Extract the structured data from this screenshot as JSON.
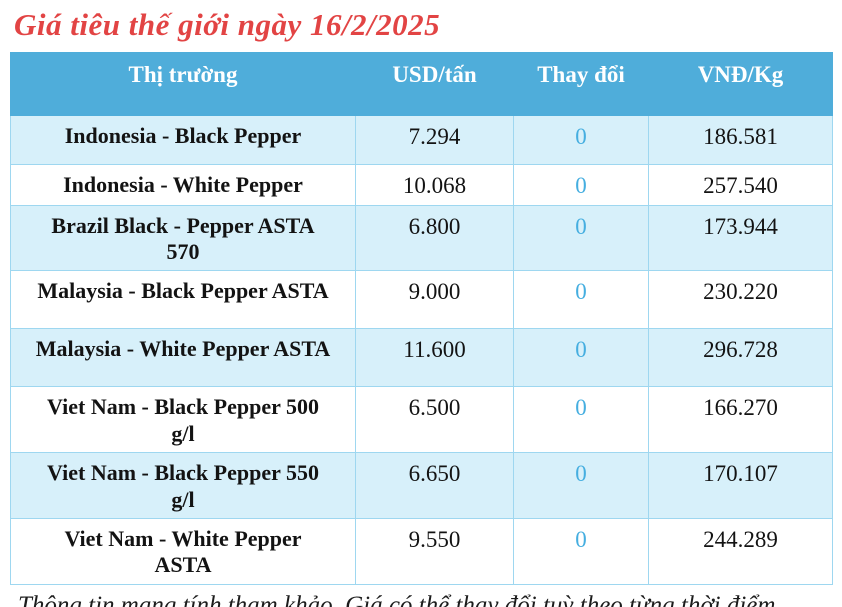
{
  "title": "Giá tiêu thế giới ngày 16/2/2025",
  "footer": "Thông tin mang tính tham khảo. Giá có thể thay đổi tuỳ theo từng thời điểm",
  "table": {
    "columns": [
      "Thị trường",
      "USD/tấn",
      "Thay đổi",
      "VNĐ/Kg"
    ],
    "rows": [
      {
        "market": "Indonesia - Black Pepper",
        "usd": "7.294",
        "change": "0",
        "vnd": "186.581"
      },
      {
        "market": "Indonesia - White Pepper",
        "usd": "10.068",
        "change": "0",
        "vnd": "257.540"
      },
      {
        "market": "Brazil Black - Pepper ASTA 570",
        "usd": "6.800",
        "change": "0",
        "vnd": "173.944"
      },
      {
        "market": "Malaysia - Black Pepper ASTA",
        "usd": "9.000",
        "change": "0",
        "vnd": "230.220"
      },
      {
        "market": "Malaysia - White Pepper ASTA",
        "usd": "11.600",
        "change": "0",
        "vnd": "296.728"
      },
      {
        "market": "Viet Nam - Black Pepper 500 g/l",
        "usd": "6.500",
        "change": "0",
        "vnd": "166.270"
      },
      {
        "market": "Viet Nam - Black Pepper 550 g/l",
        "usd": "6.650",
        "change": "0",
        "vnd": "170.107"
      },
      {
        "market": "Viet Nam - White Pepper ASTA",
        "usd": "9.550",
        "change": "0",
        "vnd": "244.289"
      }
    ]
  },
  "colors": {
    "title_red": "#e24444",
    "header_blue": "#4fadda",
    "row_stripe_blue": "#d7f0fa",
    "grid_border_blue": "#9ed7f0",
    "change_value_blue": "#45aee0"
  },
  "chart_data": {
    "type": "table",
    "title": "Giá tiêu thế giới ngày 16/2/2025",
    "columns": [
      "Thị trường",
      "USD/tấn",
      "Thay đổi",
      "VNĐ/Kg"
    ],
    "rows": [
      [
        "Indonesia - Black Pepper",
        "7.294",
        "0",
        "186.581"
      ],
      [
        "Indonesia - White Pepper",
        "10.068",
        "0",
        "257.540"
      ],
      [
        "Brazil Black - Pepper ASTA 570",
        "6.800",
        "0",
        "173.944"
      ],
      [
        "Malaysia - Black Pepper ASTA",
        "9.000",
        "0",
        "230.220"
      ],
      [
        "Malaysia - White Pepper ASTA",
        "11.600",
        "0",
        "296.728"
      ],
      [
        "Viet Nam - Black Pepper 500 g/l",
        "6.500",
        "0",
        "166.270"
      ],
      [
        "Viet Nam - Black Pepper 550 g/l",
        "6.650",
        "0",
        "170.107"
      ],
      [
        "Viet Nam - White Pepper ASTA",
        "9.550",
        "0",
        "244.289"
      ]
    ],
    "footnote": "Thông tin mang tính tham khảo. Giá có thể thay đổi tuỳ theo từng thời điểm"
  }
}
